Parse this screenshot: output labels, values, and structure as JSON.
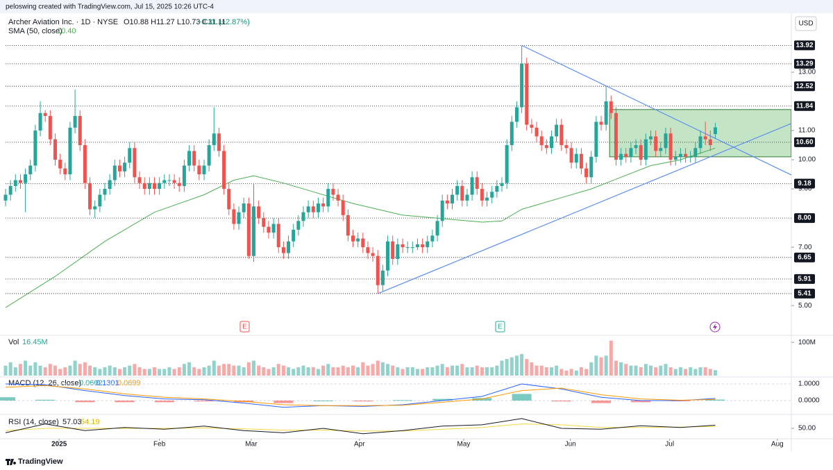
{
  "chart_data": {
    "type": "candlestick",
    "header": {
      "creator": "peloswing created with TradingView.com, Jul 15, 2025 10:26 UTC-4",
      "symbol": "Archer Aviation Inc. · 1D · NYSE",
      "ohlc": "O10.88  H11.27  L10.73  C11.11",
      "change": "+0.31 (+2.87%)"
    },
    "currency": "USD",
    "footer": "TradingView",
    "earnings_marker": "E",
    "up_color": "#26a69a",
    "down_color": "#ef5350",
    "ylim": [
      3.98,
      15
    ],
    "yticks": [
      {
        "value": 13,
        "label": "13.00"
      },
      {
        "value": 11,
        "label": "11.00"
      },
      {
        "value": 10,
        "label": "10.00"
      },
      {
        "value": 9,
        "label": "9.00"
      },
      {
        "value": 7,
        "label": "7.00"
      },
      {
        "value": 5,
        "label": "5.00"
      }
    ],
    "levels": [
      13.92,
      13.29,
      12.52,
      11.84,
      {
        "value": 10.6,
        "label": "10.60"
      },
      9.18,
      {
        "value": 8,
        "label": "8.00"
      },
      6.65,
      5.91,
      5.41
    ],
    "xticks": [
      {
        "value": 10.8,
        "label": "2025"
      },
      {
        "value": 31,
        "label": "Feb"
      },
      {
        "value": 49.5,
        "label": "Mar"
      },
      {
        "value": 71.3,
        "label": "Apr"
      },
      {
        "value": 92.3,
        "label": "May"
      },
      {
        "value": 113.8,
        "label": "Jun"
      },
      {
        "value": 133.8,
        "label": "Jul"
      },
      {
        "value": 155.5,
        "label": "Aug"
      }
    ],
    "candles": [
      [
        8.6,
        9.0,
        8.4,
        8.8
      ],
      [
        8.8,
        9.3,
        8.6,
        9.1
      ],
      [
        9.1,
        9.5,
        8.9,
        9.3
      ],
      [
        9.3,
        9.5,
        9.0,
        9.2
      ],
      [
        9.2,
        9.7,
        8.2,
        9.5
      ],
      [
        9.5,
        10.0,
        9.3,
        9.8
      ],
      [
        9.8,
        11.2,
        9.6,
        11.0
      ],
      [
        11.0,
        12.0,
        10.8,
        11.6
      ],
      [
        11.6,
        11.7,
        11.3,
        11.5
      ],
      [
        11.5,
        11.7,
        10.5,
        10.7
      ],
      [
        10.7,
        10.9,
        9.8,
        10.0
      ],
      [
        10.0,
        10.2,
        9.5,
        9.7
      ],
      [
        9.7,
        9.9,
        9.3,
        9.5
      ],
      [
        9.5,
        11.3,
        9.3,
        11.1
      ],
      [
        11.1,
        12.4,
        10.9,
        11.5
      ],
      [
        11.5,
        11.7,
        10.3,
        10.5
      ],
      [
        10.5,
        10.7,
        9.0,
        9.2
      ],
      [
        9.2,
        9.4,
        8.1,
        8.3
      ],
      [
        8.3,
        8.6,
        8.0,
        8.4
      ],
      [
        8.4,
        9.0,
        8.2,
        8.8
      ],
      [
        8.8,
        9.2,
        8.6,
        9.0
      ],
      [
        9.0,
        9.5,
        8.8,
        9.3
      ],
      [
        9.3,
        10.0,
        9.1,
        9.8
      ],
      [
        9.8,
        10.0,
        9.4,
        9.6
      ],
      [
        9.6,
        10.1,
        9.4,
        9.9
      ],
      [
        9.9,
        10.6,
        9.7,
        10.4
      ],
      [
        10.4,
        10.6,
        9.2,
        9.4
      ],
      [
        9.4,
        9.6,
        9.0,
        9.2
      ],
      [
        9.2,
        9.4,
        8.8,
        9.0
      ],
      [
        9.0,
        9.4,
        8.8,
        9.2
      ],
      [
        9.2,
        9.4,
        8.8,
        9.0
      ],
      [
        9.0,
        9.4,
        8.8,
        9.2
      ],
      [
        9.2,
        9.5,
        9.0,
        9.3
      ],
      [
        9.3,
        9.5,
        9.1,
        9.3
      ],
      [
        9.3,
        9.5,
        9.0,
        9.2
      ],
      [
        9.2,
        9.4,
        8.9,
        9.1
      ],
      [
        9.1,
        10.0,
        8.9,
        9.8
      ],
      [
        9.8,
        10.5,
        9.6,
        10.3
      ],
      [
        10.3,
        10.5,
        9.6,
        9.8
      ],
      [
        9.8,
        10.0,
        9.3,
        9.5
      ],
      [
        9.5,
        10.0,
        9.3,
        9.8
      ],
      [
        9.8,
        10.7,
        9.6,
        10.5
      ],
      [
        10.5,
        11.8,
        10.3,
        10.9
      ],
      [
        10.9,
        11.1,
        10.1,
        10.3
      ],
      [
        10.3,
        10.5,
        8.8,
        9.0
      ],
      [
        9.0,
        9.2,
        8.1,
        8.3
      ],
      [
        8.3,
        8.5,
        7.6,
        7.8
      ],
      [
        7.8,
        8.4,
        7.6,
        8.2
      ],
      [
        8.2,
        8.7,
        8.0,
        8.5
      ],
      [
        8.5,
        8.7,
        6.6,
        6.7
      ],
      [
        6.7,
        9.2,
        6.5,
        8.4
      ],
      [
        8.4,
        8.6,
        7.8,
        8.0
      ],
      [
        8.0,
        8.2,
        7.5,
        7.7
      ],
      [
        7.7,
        7.9,
        7.3,
        7.5
      ],
      [
        7.5,
        8.0,
        7.3,
        7.8
      ],
      [
        7.8,
        8.0,
        6.8,
        7.0
      ],
      [
        7.0,
        7.2,
        6.6,
        6.8
      ],
      [
        6.8,
        7.4,
        6.6,
        7.2
      ],
      [
        7.2,
        7.8,
        7.0,
        7.6
      ],
      [
        7.6,
        8.1,
        7.4,
        7.9
      ],
      [
        7.9,
        8.4,
        7.7,
        8.2
      ],
      [
        8.2,
        8.6,
        8.0,
        8.4
      ],
      [
        8.4,
        8.6,
        8.0,
        8.2
      ],
      [
        8.2,
        8.7,
        8.0,
        8.5
      ],
      [
        8.5,
        8.7,
        8.2,
        8.4
      ],
      [
        8.4,
        9.2,
        8.2,
        9.0
      ],
      [
        9.0,
        9.2,
        8.6,
        8.8
      ],
      [
        8.8,
        9.0,
        8.4,
        8.6
      ],
      [
        8.6,
        8.8,
        7.9,
        8.1
      ],
      [
        8.1,
        8.3,
        7.2,
        7.4
      ],
      [
        7.4,
        7.6,
        7.0,
        7.2
      ],
      [
        7.2,
        7.5,
        7.0,
        7.3
      ],
      [
        7.3,
        7.5,
        6.8,
        7.0
      ],
      [
        7.0,
        7.2,
        6.6,
        6.8
      ],
      [
        6.8,
        7.0,
        6.5,
        6.7
      ],
      [
        6.7,
        6.9,
        5.41,
        5.7
      ],
      [
        5.7,
        6.4,
        5.5,
        6.2
      ],
      [
        6.2,
        7.4,
        6.0,
        7.2
      ],
      [
        7.2,
        7.4,
        6.4,
        6.6
      ],
      [
        6.6,
        7.3,
        6.4,
        7.1
      ],
      [
        7.1,
        7.3,
        6.8,
        7.0
      ],
      [
        7.0,
        7.2,
        6.8,
        7.0
      ],
      [
        7.0,
        7.2,
        6.8,
        7.0
      ],
      [
        7.0,
        7.3,
        6.9,
        7.1
      ],
      [
        7.1,
        7.3,
        6.8,
        7.0
      ],
      [
        7.0,
        7.4,
        6.8,
        7.2
      ],
      [
        7.2,
        7.6,
        7.0,
        7.4
      ],
      [
        7.4,
        8.1,
        7.2,
        7.9
      ],
      [
        7.9,
        8.8,
        7.7,
        8.6
      ],
      [
        8.6,
        8.8,
        8.3,
        8.5
      ],
      [
        8.5,
        9.0,
        8.3,
        8.8
      ],
      [
        8.8,
        9.3,
        8.6,
        9.1
      ],
      [
        9.1,
        9.3,
        8.4,
        8.6
      ],
      [
        8.6,
        9.0,
        8.4,
        8.8
      ],
      [
        8.8,
        9.6,
        8.6,
        9.4
      ],
      [
        9.4,
        9.6,
        8.8,
        9.0
      ],
      [
        9.0,
        9.2,
        8.4,
        8.6
      ],
      [
        8.6,
        8.9,
        8.4,
        8.7
      ],
      [
        8.7,
        9.1,
        8.5,
        8.9
      ],
      [
        8.9,
        9.3,
        8.7,
        9.1
      ],
      [
        9.1,
        9.4,
        8.9,
        9.2
      ],
      [
        9.2,
        10.7,
        9.0,
        10.5
      ],
      [
        10.5,
        11.5,
        10.3,
        11.3
      ],
      [
        11.3,
        12.0,
        11.1,
        11.8
      ],
      [
        11.8,
        13.92,
        11.6,
        13.3
      ],
      [
        13.3,
        13.5,
        11.0,
        11.2
      ],
      [
        11.2,
        11.4,
        10.9,
        11.1
      ],
      [
        11.1,
        11.3,
        10.6,
        10.8
      ],
      [
        10.8,
        11.0,
        10.3,
        10.5
      ],
      [
        10.5,
        10.7,
        10.2,
        10.4
      ],
      [
        10.4,
        11.0,
        10.2,
        10.8
      ],
      [
        10.8,
        11.4,
        10.6,
        11.2
      ],
      [
        11.2,
        11.4,
        10.3,
        10.5
      ],
      [
        10.5,
        10.7,
        10.2,
        10.4
      ],
      [
        10.4,
        10.6,
        9.7,
        9.9
      ],
      [
        9.9,
        10.4,
        9.7,
        10.2
      ],
      [
        10.2,
        10.4,
        9.5,
        9.7
      ],
      [
        9.7,
        9.9,
        9.2,
        9.4
      ],
      [
        9.4,
        10.3,
        9.2,
        10.1
      ],
      [
        10.1,
        11.5,
        9.9,
        11.3
      ],
      [
        11.3,
        11.5,
        11.0,
        11.2
      ],
      [
        11.2,
        12.5,
        11.0,
        12.0
      ],
      [
        12.0,
        12.2,
        11.4,
        11.6
      ],
      [
        11.6,
        11.8,
        9.8,
        10.0
      ],
      [
        10.0,
        10.4,
        9.8,
        10.2
      ],
      [
        10.2,
        10.4,
        9.9,
        10.1
      ],
      [
        10.1,
        10.6,
        9.9,
        10.4
      ],
      [
        10.4,
        10.7,
        10.2,
        10.5
      ],
      [
        10.5,
        10.7,
        9.8,
        10.0
      ],
      [
        10.0,
        10.9,
        9.8,
        10.7
      ],
      [
        10.7,
        11.0,
        10.5,
        10.8
      ],
      [
        10.8,
        11.0,
        10.1,
        10.3
      ],
      [
        10.3,
        10.6,
        10.1,
        10.4
      ],
      [
        10.4,
        11.1,
        10.2,
        10.9
      ],
      [
        10.9,
        11.1,
        9.8,
        10.0
      ],
      [
        10.0,
        10.3,
        9.8,
        10.1
      ],
      [
        10.1,
        10.4,
        9.9,
        10.2
      ],
      [
        10.2,
        10.4,
        9.9,
        10.1
      ],
      [
        10.1,
        10.3,
        9.9,
        10.1
      ],
      [
        10.1,
        10.6,
        9.9,
        10.4
      ],
      [
        10.4,
        11.0,
        10.2,
        10.8
      ],
      [
        10.8,
        11.3,
        10.5,
        10.7
      ],
      [
        10.7,
        11.0,
        10.3,
        10.5
      ],
      [
        10.88,
        11.27,
        10.73,
        11.11
      ]
    ],
    "sma": {
      "name": "SMA (50, close)",
      "legend_value": "10.40",
      "color": "#4caf50",
      "x": [
        0,
        10,
        20,
        30,
        40,
        46,
        50,
        56,
        62,
        70,
        80,
        88,
        96,
        100,
        104,
        112,
        118,
        124,
        130,
        136,
        143
      ],
      "values": [
        4.93,
        6.0,
        7.2,
        8.2,
        8.8,
        9.3,
        9.45,
        9.2,
        8.9,
        8.5,
        8.1,
        7.98,
        7.86,
        7.9,
        8.3,
        8.7,
        9.0,
        9.4,
        9.8,
        10.0,
        10.4
      ]
    },
    "trendlines": [
      {
        "color": "#5b8def",
        "x": [
          104,
          158.3
        ],
        "values": [
          13.92,
          9.48
        ]
      },
      {
        "color": "#5b8def",
        "x": [
          75,
          158.3
        ],
        "values": [
          5.41,
          11.24
        ]
      }
    ],
    "box": {
      "color": "#a5d6a7",
      "x": [
        121.7,
        158.3
      ],
      "values": [
        10.1,
        11.72
      ]
    },
    "volume": {
      "name": "Vol",
      "legend_value": "16.45M",
      "ylim": [
        0,
        117
      ],
      "yticks": [
        {
          "value": 100,
          "label": "100M"
        }
      ],
      "values": [
        30,
        40,
        25,
        35,
        45,
        30,
        40,
        30,
        25,
        35,
        30,
        20,
        25,
        30,
        45,
        35,
        40,
        30,
        25,
        20,
        25,
        30,
        25,
        20,
        25,
        30,
        35,
        25,
        20,
        20,
        25,
        20,
        20,
        25,
        20,
        25,
        35,
        40,
        25,
        20,
        25,
        30,
        45,
        30,
        35,
        35,
        30,
        30,
        25,
        40,
        45,
        30,
        25,
        20,
        25,
        35,
        30,
        25,
        20,
        25,
        30,
        25,
        25,
        20,
        30,
        35,
        25,
        25,
        30,
        25,
        30,
        25,
        40,
        30,
        35,
        45,
        40,
        35,
        30,
        25,
        20,
        25,
        25,
        20,
        20,
        25,
        25,
        30,
        35,
        25,
        30,
        30,
        35,
        25,
        25,
        30,
        25,
        25,
        25,
        30,
        45,
        50,
        55,
        60,
        65,
        50,
        40,
        30,
        30,
        25,
        25,
        30,
        20,
        15,
        20,
        15,
        25,
        20,
        40,
        60,
        55,
        60,
        105,
        45,
        40,
        35,
        30,
        30,
        25,
        35,
        30,
        25,
        30,
        35,
        25,
        20,
        25,
        20,
        25,
        20,
        25,
        25,
        20,
        16.45
      ]
    },
    "macd": {
      "name": "MACD (12, 26, close)",
      "ylim": [
        -0.75,
        1.333
      ],
      "yticks": [
        {
          "value": 1,
          "label": "1.0000"
        },
        {
          "value": 0,
          "label": "0.0000"
        }
      ],
      "x": [
        0,
        8,
        16,
        24,
        32,
        40,
        48,
        56,
        64,
        72,
        80,
        88,
        96,
        104,
        112,
        120,
        128,
        136,
        143
      ],
      "histogram": {
        "color": "#26a69a",
        "values": [
          0.2,
          0.05,
          -0.1,
          -0.1,
          -0.1,
          -0.05,
          -0.1,
          -0.15,
          0,
          -0.05,
          0.03,
          0.1,
          0.15,
          0.4,
          -0.05,
          -0.15,
          -0.1,
          -0.02,
          0.0602
        ]
      },
      "macd_line": {
        "color": "#2962ff",
        "values": [
          1.0,
          0.95,
          0.6,
          0.3,
          0.1,
          0.05,
          -0.15,
          -0.4,
          -0.3,
          -0.35,
          -0.25,
          0.0,
          0.25,
          1.0,
          0.7,
          0.2,
          0.0,
          0.0,
          0.1301
        ]
      },
      "signal": {
        "color": "#ff9800",
        "values": [
          0.8,
          0.9,
          0.7,
          0.4,
          0.2,
          0.1,
          -0.05,
          -0.25,
          -0.3,
          -0.3,
          -0.28,
          -0.1,
          0.1,
          0.6,
          0.75,
          0.35,
          0.1,
          0.02,
          0.0699
        ]
      }
    },
    "rsi": {
      "name": "RSI (14, close)",
      "ylim": [
        26.6,
        81.25
      ],
      "yticks": [
        {
          "value": 50,
          "label": "50.00"
        }
      ],
      "x": [
        0,
        8,
        16,
        24,
        32,
        40,
        48,
        56,
        64,
        72,
        80,
        88,
        96,
        104,
        112,
        120,
        128,
        136,
        143
      ],
      "rsi_line": {
        "color": "#131722",
        "values": [
          40,
          60,
          45,
          52,
          48,
          55,
          45,
          40,
          50,
          38,
          45,
          55,
          58,
          72,
          50,
          48,
          56,
          52,
          57.03
        ]
      },
      "ma": {
        "color": "#f5d742",
        "values": [
          45,
          50,
          50,
          50,
          50,
          51,
          49,
          46,
          46,
          44,
          44,
          48,
          52,
          60,
          58,
          52,
          52,
          53,
          54.19
        ]
      }
    }
  }
}
